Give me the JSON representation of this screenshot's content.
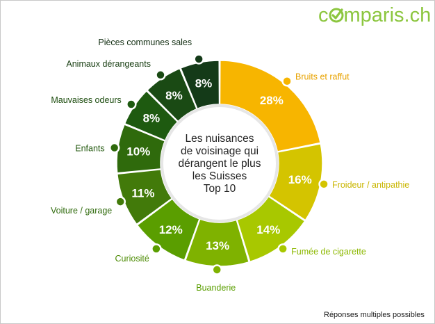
{
  "brand": {
    "logo_start": "c",
    "logo_end": "mparis.ch",
    "logo_color": "#8cc63f"
  },
  "footnote": "Réponses multiples possibles",
  "chart_data": {
    "type": "pie",
    "style": "donut",
    "title_lines": [
      "Les nuisances",
      "de voisinage qui",
      "dérangent le plus",
      "les Suisses",
      "Top 10"
    ],
    "categories": [
      "Bruits et raffut",
      "Froideur / antipathie",
      "Fumée de cigarette",
      "Buanderie",
      "Curiosité",
      "Voiture / garage",
      "Enfants",
      "Mauvaises odeurs",
      "Animaux dérangeants",
      "Pièces communes sales"
    ],
    "values": [
      28,
      16,
      14,
      13,
      12,
      11,
      10,
      8,
      8,
      8
    ],
    "value_labels": [
      "28%",
      "16%",
      "14%",
      "13%",
      "12%",
      "11%",
      "10%",
      "8%",
      "8%",
      "8%"
    ],
    "colors": [
      "#f7b500",
      "#d4c400",
      "#a8c800",
      "#7fb200",
      "#5a9e00",
      "#427a0a",
      "#2f6a0c",
      "#1e5a10",
      "#1a4a14",
      "#143a18"
    ],
    "label_colors": [
      "#e8a300",
      "#c9b600",
      "#8cb800",
      "#5a9e00",
      "#4a8a00",
      "#2f6a0c",
      "#245a10",
      "#1e4e10",
      "#183e12",
      "#122e12"
    ],
    "legend": "none"
  }
}
